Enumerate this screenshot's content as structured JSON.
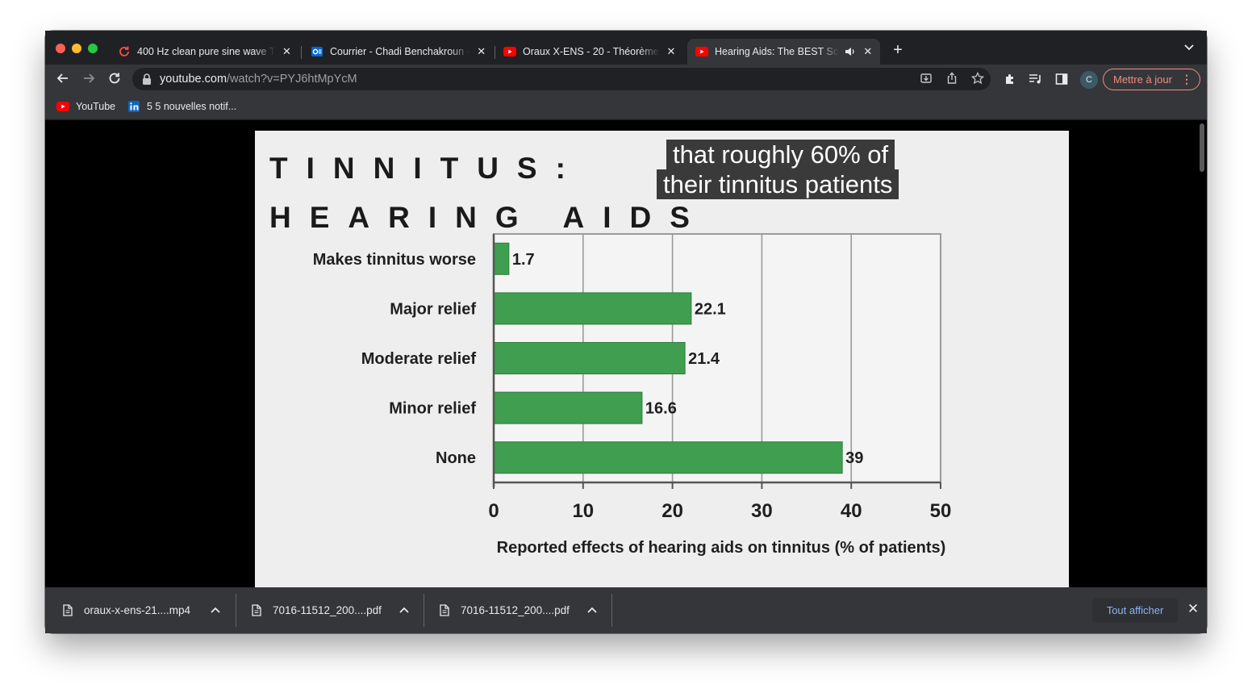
{
  "tabs": [
    {
      "title": "400 Hz clean pure sine wave T",
      "icon": "reload-icon",
      "active": false
    },
    {
      "title": "Courrier - Chadi Benchakroun -",
      "icon": "outlook-icon",
      "active": false
    },
    {
      "title": "Oraux X-ENS - 20 - Théorème",
      "icon": "youtube-icon",
      "active": false
    },
    {
      "title": "Hearing Aids: The BEST So",
      "icon": "youtube-icon",
      "active": true
    }
  ],
  "toolbar": {
    "url_host": "youtube.com",
    "url_path": "/watch?v=PYJ6htMpYcM",
    "profile_initial": "C",
    "update_label": "Mettre à jour"
  },
  "bookmarks": [
    {
      "label": "YouTube",
      "icon": "youtube-icon"
    },
    {
      "label": "5 5 nouvelles notif...",
      "icon": "linkedin-icon"
    }
  ],
  "video": {
    "title_line1": "TINNITUS:",
    "title_line2": "HEARING AIDS",
    "caption_line1": "that roughly 60% of",
    "caption_line2": "their tinnitus patients"
  },
  "chart_data": {
    "type": "bar",
    "orientation": "horizontal",
    "categories": [
      "Makes tinnitus worse",
      "Major relief",
      "Moderate relief",
      "Minor relief",
      "None"
    ],
    "values": [
      1.7,
      22.1,
      21.4,
      16.6,
      39
    ],
    "value_labels": [
      "1.7",
      "22.1",
      "21.4",
      "16.6",
      "39"
    ],
    "xlabel": "Reported effects of hearing aids on tinnitus (% of patients)",
    "xlim": [
      0,
      50
    ],
    "xticks": [
      0,
      10,
      20,
      30,
      40,
      50
    ],
    "bar_color": "#3f9e4f",
    "grid": true
  },
  "downloads": [
    {
      "name": "oraux-x-ens-21....mp4"
    },
    {
      "name": "7016-11512_200....pdf"
    },
    {
      "name": "7016-11512_200....pdf"
    }
  ],
  "downloads_show_all": "Tout afficher"
}
